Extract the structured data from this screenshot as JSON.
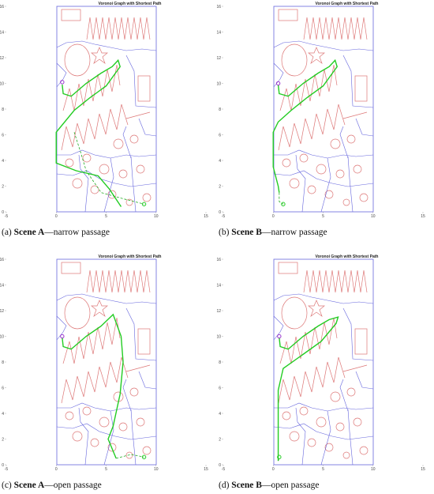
{
  "chart_data": [
    {
      "type": "line",
      "title": "Voronoi Graph with Shortest Path",
      "caption_label": "(a)",
      "caption_bold": "Scene A",
      "caption_text": "—narrow passage",
      "xlim": [
        -5,
        15
      ],
      "ylim": [
        0,
        16
      ],
      "xticks": [
        -5,
        0,
        5,
        10,
        15
      ],
      "yticks": [
        0,
        2,
        4,
        6,
        8,
        10,
        12,
        14,
        16
      ],
      "series": [
        {
          "color": "#22cc22",
          "style": "solid",
          "x": [
            0.6,
            0.7,
            1.5,
            3.0,
            4.5,
            5.6,
            6.2,
            6.4,
            5.0,
            3.4,
            1.8,
            0.0,
            0.0,
            2.0,
            4.2,
            5.3,
            6.5
          ],
          "y": [
            9.9,
            9.2,
            9.0,
            10.0,
            10.8,
            11.3,
            11.8,
            11.3,
            9.8,
            8.9,
            7.9,
            6.2,
            3.8,
            3.2,
            2.8,
            1.8,
            0.4
          ]
        },
        {
          "color": "#22aa22",
          "style": "dashed",
          "x": [
            1.8,
            2.5,
            3.0,
            4.5,
            6.8,
            8.8
          ],
          "y": [
            6.2,
            4.5,
            3.2,
            1.5,
            1.0,
            0.6
          ]
        }
      ],
      "start": {
        "x": 0.6,
        "y": 10.1,
        "color": "#9933cc"
      },
      "goal": {
        "x": 8.8,
        "y": 0.6,
        "color": "#22cc22"
      }
    },
    {
      "type": "line",
      "title": "Voronoi Graph with Shortest Path",
      "caption_label": "(b)",
      "caption_bold": "Scene B",
      "caption_text": "—narrow passage",
      "xlim": [
        -5,
        15
      ],
      "ylim": [
        0,
        16
      ],
      "xticks": [
        -5,
        0,
        5,
        10,
        15
      ],
      "yticks": [
        0,
        2,
        4,
        6,
        8,
        10,
        12,
        14,
        16
      ],
      "series": [
        {
          "color": "#22cc22",
          "style": "solid",
          "x": [
            0.5,
            0.6,
            1.5,
            3.0,
            4.5,
            5.6,
            6.2,
            6.4,
            5.0,
            3.4,
            1.8,
            0.5,
            0.0,
            0.0,
            0.5,
            0.6
          ],
          "y": [
            9.9,
            9.2,
            9.0,
            10.0,
            10.8,
            11.3,
            11.8,
            11.3,
            9.8,
            8.9,
            7.9,
            7.0,
            6.2,
            3.5,
            2.0,
            1.5
          ]
        },
        {
          "color": "#22aa22",
          "style": "dashed",
          "x": [
            0.6,
            0.6,
            1.0
          ],
          "y": [
            1.5,
            0.8,
            0.6
          ]
        }
      ],
      "start": {
        "x": 0.5,
        "y": 10.0,
        "color": "#9933cc"
      },
      "goal": {
        "x": 1.0,
        "y": 0.6,
        "color": "#22cc22"
      }
    },
    {
      "type": "line",
      "title": "Voronoi Graph with Shortest Path",
      "caption_label": "(c)",
      "caption_bold": "Scene A",
      "caption_text": "—open passage",
      "xlim": [
        -5,
        15
      ],
      "ylim": [
        0,
        16
      ],
      "xticks": [
        -5,
        0,
        5,
        10,
        15
      ],
      "yticks": [
        0,
        2,
        4,
        6,
        8,
        10,
        12,
        14,
        16
      ],
      "series": [
        {
          "color": "#22cc22",
          "style": "solid",
          "x": [
            0.6,
            0.7,
            1.5,
            3.0,
            4.5,
            5.7,
            6.5,
            6.7,
            6.4,
            5.7,
            5.2,
            6.0
          ],
          "y": [
            9.9,
            9.2,
            9.0,
            10.0,
            10.8,
            11.7,
            10.0,
            8.0,
            5.5,
            3.0,
            2.0,
            0.5
          ]
        },
        {
          "color": "#22aa22",
          "style": "dashed",
          "x": [
            6.0,
            7.5,
            8.8
          ],
          "y": [
            0.5,
            0.8,
            0.6
          ]
        }
      ],
      "start": {
        "x": 0.6,
        "y": 10.0,
        "color": "#9933cc"
      },
      "goal": {
        "x": 8.8,
        "y": 0.6,
        "color": "#22cc22"
      }
    },
    {
      "type": "line",
      "title": "Voronoi Graph with Shortest Path",
      "caption_label": "(d)",
      "caption_bold": "Scene B",
      "caption_text": "—open passage",
      "xlim": [
        -5,
        15
      ],
      "ylim": [
        0,
        16
      ],
      "xticks": [
        -5,
        0,
        5,
        10,
        15
      ],
      "yticks": [
        0,
        2,
        4,
        6,
        8,
        10,
        12,
        14,
        16
      ],
      "series": [
        {
          "color": "#22cc22",
          "style": "solid",
          "x": [
            0.6,
            0.7,
            1.5,
            3.0,
            4.5,
            5.6,
            6.5,
            6.3,
            4.8,
            3.0,
            1.0,
            0.5,
            0.5
          ],
          "y": [
            9.9,
            9.2,
            9.0,
            10.0,
            10.8,
            11.3,
            11.5,
            11.0,
            9.6,
            8.6,
            7.5,
            5.8,
            0.3
          ]
        },
        {
          "color": "#22aa22",
          "style": "dashed",
          "x": [
            0.5,
            0.6
          ],
          "y": [
            0.3,
            0.6
          ]
        }
      ],
      "start": {
        "x": 0.6,
        "y": 10.0,
        "color": "#9933cc"
      },
      "goal": {
        "x": 0.6,
        "y": 0.6,
        "color": "#22cc22"
      }
    }
  ]
}
